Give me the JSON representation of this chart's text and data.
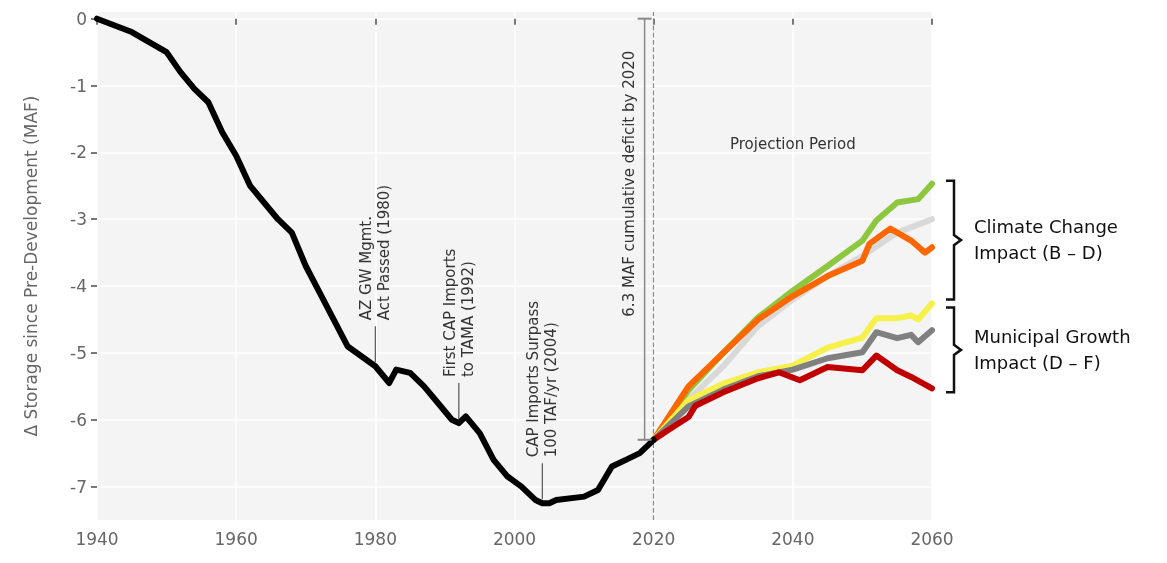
{
  "chart_data": {
    "type": "line",
    "ylabel": "Δ Storage since Pre-Development (MAF)",
    "xlim": [
      1940,
      2060
    ],
    "xticks": [
      1940,
      1960,
      1980,
      2000,
      2020,
      2040,
      2060
    ],
    "ylim": [
      -7.5,
      0.1
    ],
    "yticks": [
      0,
      -1,
      -2,
      -3,
      -4,
      -5,
      -6,
      -7
    ],
    "grid": true,
    "line_style": "solid",
    "series": [
      {
        "color": "#888888",
        "x": [
          2018.7,
          2018.7
        ],
        "values": [
          0,
          -6.3
        ]
      },
      {
        "color": "#d9d9d9",
        "x": [
          2020,
          2025,
          2030,
          2035,
          2040,
          2045,
          2050,
          2055,
          2060
        ],
        "values": [
          -6.3,
          -5.7,
          -5.2,
          -4.6,
          -4.2,
          -3.85,
          -3.55,
          -3.2,
          -3.0
        ]
      },
      {
        "color": "#8dc63f",
        "x": [
          2020,
          2025,
          2030,
          2035,
          2040,
          2045,
          2050,
          2052,
          2055,
          2058,
          2060
        ],
        "values": [
          -6.3,
          -5.56,
          -5.0,
          -4.47,
          -4.07,
          -3.7,
          -3.32,
          -3.02,
          -2.75,
          -2.7,
          -2.47
        ]
      },
      {
        "color": "#ff6600",
        "x": [
          2020,
          2025,
          2030,
          2035,
          2040,
          2045,
          2050,
          2051,
          2054,
          2057,
          2059,
          2060
        ],
        "values": [
          -6.3,
          -5.5,
          -5.0,
          -4.5,
          -4.15,
          -3.85,
          -3.62,
          -3.37,
          -3.14,
          -3.32,
          -3.5,
          -3.42
        ]
      },
      {
        "color": "#f5f04a",
        "x": [
          2020,
          2025,
          2030,
          2035,
          2040,
          2045,
          2050,
          2052,
          2055,
          2057,
          2058,
          2060
        ],
        "values": [
          -6.3,
          -5.71,
          -5.46,
          -5.29,
          -5.19,
          -4.92,
          -4.77,
          -4.48,
          -4.48,
          -4.44,
          -4.5,
          -4.26
        ]
      },
      {
        "color": "#808080",
        "x": [
          2020,
          2025,
          2030,
          2035,
          2040,
          2045,
          2050,
          2052,
          2055,
          2057,
          2058,
          2060
        ],
        "values": [
          -6.3,
          -5.8,
          -5.55,
          -5.35,
          -5.25,
          -5.08,
          -4.99,
          -4.69,
          -4.78,
          -4.73,
          -4.84,
          -4.66
        ]
      },
      {
        "color": "#c00000",
        "x": [
          2020,
          2022,
          2025,
          2026,
          2030,
          2035,
          2038,
          2041,
          2045,
          2050,
          2052,
          2055,
          2057,
          2060
        ],
        "values": [
          -6.3,
          -6.16,
          -5.96,
          -5.79,
          -5.59,
          -5.38,
          -5.29,
          -5.41,
          -5.21,
          -5.26,
          -5.04,
          -5.26,
          -5.36,
          -5.53
        ]
      },
      {
        "color": "#000000",
        "x": [
          1940,
          1945,
          1950,
          1952,
          1954,
          1956,
          1958,
          1960,
          1962,
          1964,
          1966,
          1968,
          1970,
          1972,
          1974,
          1976,
          1978,
          1980,
          1982,
          1983,
          1985,
          1987,
          1989,
          1991,
          1992,
          1993,
          1995,
          1997,
          1999,
          2001,
          2003,
          2004,
          2005,
          2006,
          2010,
          2012,
          2014,
          2016,
          2018,
          2020
        ],
        "values": [
          0,
          -0.2,
          -0.5,
          -0.8,
          -1.05,
          -1.25,
          -1.7,
          -2.05,
          -2.5,
          -2.75,
          -3.0,
          -3.2,
          -3.7,
          -4.1,
          -4.5,
          -4.9,
          -5.05,
          -5.2,
          -5.45,
          -5.25,
          -5.3,
          -5.5,
          -5.75,
          -6.0,
          -6.05,
          -5.95,
          -6.2,
          -6.6,
          -6.85,
          -7.0,
          -7.2,
          -7.25,
          -7.25,
          -7.2,
          -7.15,
          -7.05,
          -6.7,
          -6.6,
          -6.5,
          -6.3
        ]
      }
    ],
    "ref_lines": [
      {
        "axis": "x",
        "value": 2020,
        "color": "#888888",
        "line_style": "dashed"
      }
    ],
    "annotations": [
      {
        "text": "AZ GW Mgmt.\nAct Passed (1980)",
        "x": 1980,
        "y": -5.2
      },
      {
        "text": "First CAP Imports\nto TAMA (1992)",
        "x": 1992,
        "y": -6.05
      },
      {
        "text": "CAP Imports Surpass\n100 TAF/yr (2004)",
        "x": 2004,
        "y": -7.25
      },
      "Projection Period",
      "6.3 MAF cumulative deficit by 2020",
      "Climate Change\nImpact (B – D)",
      "Municipal Growth\nImpact (D – F)"
    ]
  }
}
